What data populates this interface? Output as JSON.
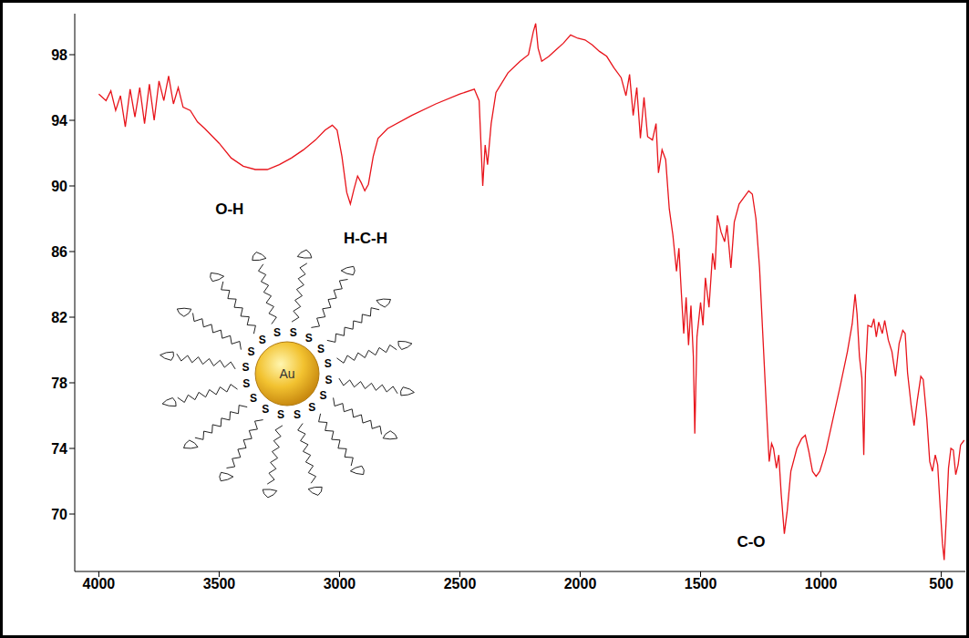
{
  "chart_data": {
    "type": "line",
    "color": "#e8141b",
    "x": [
      4000,
      3970,
      3950,
      3930,
      3910,
      3890,
      3870,
      3850,
      3830,
      3810,
      3790,
      3770,
      3750,
      3730,
      3710,
      3690,
      3670,
      3650,
      3620,
      3590,
      3560,
      3500,
      3450,
      3400,
      3350,
      3300,
      3250,
      3200,
      3150,
      3100,
      3060,
      3030,
      3010,
      2990,
      2970,
      2955,
      2940,
      2925,
      2910,
      2895,
      2880,
      2860,
      2840,
      2800,
      2700,
      2600,
      2500,
      2440,
      2420,
      2405,
      2395,
      2385,
      2370,
      2350,
      2300,
      2250,
      2215,
      2195,
      2185,
      2175,
      2160,
      2130,
      2100,
      2070,
      2040,
      2010,
      1980,
      1950,
      1920,
      1890,
      1860,
      1830,
      1810,
      1795,
      1780,
      1765,
      1750,
      1735,
      1720,
      1700,
      1685,
      1675,
      1660,
      1645,
      1630,
      1615,
      1600,
      1590,
      1580,
      1570,
      1560,
      1550,
      1540,
      1530,
      1524,
      1515,
      1500,
      1490,
      1480,
      1465,
      1450,
      1440,
      1430,
      1415,
      1400,
      1390,
      1374,
      1360,
      1340,
      1320,
      1300,
      1285,
      1270,
      1255,
      1240,
      1225,
      1215,
      1205,
      1197,
      1185,
      1175,
      1165,
      1152,
      1140,
      1125,
      1100,
      1080,
      1065,
      1050,
      1035,
      1020,
      1005,
      980,
      950,
      920,
      890,
      870,
      858,
      850,
      840,
      830,
      822,
      815,
      805,
      790,
      780,
      770,
      760,
      745,
      735,
      720,
      705,
      690,
      675,
      660,
      650,
      640,
      625,
      613,
      600,
      585,
      575,
      560,
      548,
      537,
      525,
      515,
      505,
      495,
      488,
      480,
      470,
      460,
      450,
      440,
      430,
      420,
      405
    ],
    "values": [
      95.6,
      95.2,
      95.8,
      94.6,
      95.5,
      93.6,
      95.9,
      94.2,
      96.0,
      93.8,
      96.2,
      94.0,
      96.4,
      95.2,
      96.7,
      95.0,
      96.0,
      94.8,
      94.6,
      93.9,
      93.5,
      92.6,
      91.7,
      91.2,
      91.0,
      91.0,
      91.3,
      91.7,
      92.2,
      92.8,
      93.4,
      93.7,
      93.4,
      91.8,
      89.6,
      88.9,
      89.8,
      90.6,
      90.2,
      89.7,
      90.1,
      91.8,
      92.9,
      93.5,
      94.3,
      95.0,
      95.6,
      95.9,
      95.2,
      90.0,
      92.5,
      91.3,
      93.8,
      95.7,
      96.9,
      97.6,
      98.0,
      99.4,
      99.9,
      98.4,
      97.6,
      97.9,
      98.3,
      98.7,
      99.2,
      99.0,
      98.9,
      98.6,
      98.2,
      97.9,
      97.2,
      96.6,
      95.5,
      96.8,
      94.3,
      96.0,
      92.9,
      95.4,
      93.0,
      92.8,
      93.8,
      90.8,
      92.2,
      91.6,
      88.6,
      87.0,
      84.8,
      86.2,
      83.5,
      81.0,
      83.2,
      80.3,
      82.7,
      79.6,
      74.9,
      80.8,
      82.9,
      81.5,
      84.4,
      82.6,
      85.9,
      84.9,
      88.2,
      87.2,
      86.6,
      87.6,
      85.0,
      87.8,
      88.9,
      89.3,
      89.7,
      89.5,
      88.0,
      85.0,
      80.5,
      76.0,
      73.2,
      74.3,
      74.0,
      72.8,
      73.6,
      71.2,
      68.8,
      70.2,
      72.6,
      74.0,
      74.6,
      74.8,
      73.8,
      72.6,
      72.3,
      72.6,
      73.8,
      75.8,
      77.8,
      79.9,
      81.6,
      83.4,
      82.2,
      79.6,
      78.3,
      73.6,
      78.6,
      81.5,
      81.4,
      81.9,
      80.8,
      81.7,
      81.0,
      81.8,
      80.6,
      79.9,
      78.4,
      80.4,
      81.2,
      81.0,
      78.6,
      76.6,
      75.4,
      76.9,
      78.4,
      78.2,
      75.8,
      73.2,
      72.6,
      73.6,
      73.0,
      70.5,
      68.2,
      67.2,
      69.5,
      72.8,
      74.0,
      73.9,
      72.4,
      73.0,
      74.2,
      74.5
    ],
    "xlim": [
      4100,
      400
    ],
    "xticks": [
      4000,
      3500,
      3000,
      2500,
      2000,
      1500,
      1000,
      500
    ],
    "ylim": [
      66.5,
      100.5
    ],
    "yticks": [
      70,
      74,
      78,
      82,
      86,
      90,
      94,
      98
    ],
    "grid": false,
    "annotations": [
      {
        "text": "O-H",
        "x": 3457,
        "y": 88.6
      },
      {
        "text": "H-C-H",
        "x": 2892,
        "y": 86.8
      },
      {
        "text": "C-O",
        "x": 1290,
        "y": 68.3
      }
    ],
    "inset": {
      "core_label": "Au",
      "ligand_label": "S"
    }
  }
}
